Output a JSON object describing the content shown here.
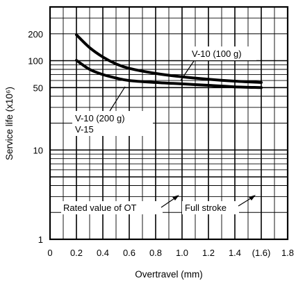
{
  "chart_data": {
    "type": "line",
    "xlabel": "Overtravel (mm)",
    "ylabel": "Service life (x10⁶)",
    "xlim": [
      0,
      1.8
    ],
    "ylim": [
      1,
      400
    ],
    "yscale": "log",
    "grid": true,
    "x_ticks": [
      {
        "value": 0,
        "label": "0"
      },
      {
        "value": 0.2,
        "label": "0.2"
      },
      {
        "value": 0.4,
        "label": "0.4"
      },
      {
        "value": 0.6,
        "label": "0.6"
      },
      {
        "value": 0.8,
        "label": "0.8"
      },
      {
        "value": 1.0,
        "label": "1.0"
      },
      {
        "value": 1.2,
        "label": "1.2"
      },
      {
        "value": 1.4,
        "label": "1.4"
      },
      {
        "value": 1.6,
        "label": "(1.6)"
      },
      {
        "value": 1.8,
        "label": "1.8"
      }
    ],
    "y_ticks": [
      {
        "value": 1,
        "label": "1"
      },
      {
        "value": 10,
        "label": "10"
      },
      {
        "value": 50,
        "label": "50"
      },
      {
        "value": 100,
        "label": "100"
      },
      {
        "value": 200,
        "label": "200"
      }
    ],
    "series": [
      {
        "name": "V-10 (100 g)",
        "x": [
          0.2,
          0.3,
          0.4,
          0.5,
          0.6,
          0.8,
          1.0,
          1.2,
          1.4,
          1.6
        ],
        "y": [
          195,
          140,
          110,
          92,
          82,
          72,
          66,
          62,
          59,
          57
        ]
      },
      {
        "name": "V-10 (200 g)",
        "x": [
          0.2,
          0.3,
          0.4,
          0.5,
          0.6,
          0.8,
          1.0,
          1.2,
          1.4,
          1.6
        ],
        "y": [
          101,
          80,
          70,
          64,
          60,
          57,
          55,
          53,
          51,
          50
        ]
      }
    ],
    "annotations": [
      {
        "text": "V-10 (100 g)",
        "points_to": "V-10 (100 g)"
      },
      {
        "text": "V-10 (200 g)",
        "points_to": "V-10 (200 g)"
      },
      {
        "text": "V-15"
      },
      {
        "text": "Rated value of OT",
        "points_to_x": 1.0
      },
      {
        "text": "Full stroke",
        "points_to_x": 1.6
      }
    ]
  }
}
